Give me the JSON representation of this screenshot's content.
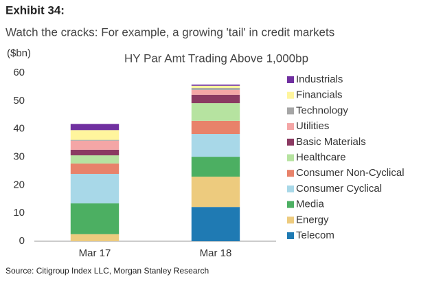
{
  "exhibit": "Exhibit 34:",
  "headline": "Watch the cracks: For example, a growing 'tail' in credit markets",
  "source": "Source: Citigroup Index LLC, Morgan Stanley Research",
  "chart_data": {
    "type": "bar",
    "stacked": true,
    "title": "HY Par Amt Trading Above 1,000bp",
    "y_label": "($bn)",
    "categories": [
      "Mar 17",
      "Mar 18"
    ],
    "series": [
      {
        "name": "Telecom",
        "color": "#1f7ab3",
        "values": [
          0,
          12.2
        ]
      },
      {
        "name": "Energy",
        "color": "#edcb7e",
        "values": [
          2.5,
          10.8
        ]
      },
      {
        "name": "Media",
        "color": "#4caf62",
        "values": [
          11,
          7.1
        ]
      },
      {
        "name": "Consumer Cyclical",
        "color": "#a8d8e8",
        "values": [
          10.5,
          8.1
        ]
      },
      {
        "name": "Consumer Non-Cyclical",
        "color": "#e8826a",
        "values": [
          3.7,
          4.7
        ]
      },
      {
        "name": "Healthcare",
        "color": "#b6e3a0",
        "values": [
          2.9,
          6.3
        ]
      },
      {
        "name": "Basic Materials",
        "color": "#8b3a62",
        "values": [
          2,
          3
        ]
      },
      {
        "name": "Utilities",
        "color": "#f4a6a6",
        "values": [
          3.2,
          1.7
        ]
      },
      {
        "name": "Technology",
        "color": "#a6a6a6",
        "values": [
          0.3,
          0.7
        ]
      },
      {
        "name": "Financials",
        "color": "#fff59d",
        "values": [
          3.5,
          0.8
        ]
      },
      {
        "name": "Industrials",
        "color": "#7030a0",
        "values": [
          2.2,
          0.4
        ]
      }
    ],
    "ylim": [
      0,
      60
    ],
    "yticks": [
      0,
      10,
      20,
      30,
      40,
      50,
      60
    ],
    "grid": false
  }
}
